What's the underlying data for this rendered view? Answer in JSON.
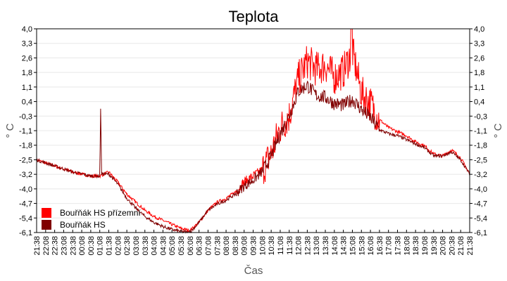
{
  "chart_data": {
    "type": "line",
    "title": "Teplota",
    "xlabel": "Čas",
    "ylabel": "° C",
    "ylabel_right": "° C",
    "ylim": [
      -6.1,
      4.0
    ],
    "yticks": [
      "4,0",
      "3,3",
      "2,6",
      "1,8",
      "1,1",
      "0,4",
      "-0,3",
      "-1,1",
      "-1,8",
      "-2,5",
      "-3,2",
      "-4,0",
      "-4,7",
      "-5,4",
      "-6,1"
    ],
    "xticks": [
      "21:38",
      "22:08",
      "22:38",
      "23:08",
      "23:38",
      "00:08",
      "00:38",
      "01:08",
      "01:38",
      "02:08",
      "02:38",
      "03:08",
      "03:38",
      "04:08",
      "04:38",
      "05:08",
      "05:38",
      "06:08",
      "06:38",
      "07:08",
      "07:38",
      "08:08",
      "08:38",
      "09:08",
      "09:38",
      "10:08",
      "10:38",
      "11:08",
      "11:38",
      "12:08",
      "12:38",
      "13:08",
      "13:38",
      "14:08",
      "14:38",
      "15:08",
      "15:38",
      "16:08",
      "16:38",
      "17:08",
      "17:38",
      "18:08",
      "18:38",
      "19:08",
      "19:38",
      "20:08",
      "20:38",
      "21:08",
      "21:38"
    ],
    "grid": true,
    "legend_position": "lower-left-inside",
    "series": [
      {
        "name": "Bouřňák HS přízemní",
        "color": "#ff0000",
        "keypoints_x_index_y": [
          [
            0,
            -2.5
          ],
          [
            2,
            -2.8
          ],
          [
            4,
            -3.1
          ],
          [
            6,
            -3.3
          ],
          [
            7,
            -3.3
          ],
          [
            8,
            -3.1
          ],
          [
            9,
            -3.6
          ],
          [
            10,
            -4.2
          ],
          [
            11,
            -4.6
          ],
          [
            12,
            -5.0
          ],
          [
            13,
            -5.3
          ],
          [
            14,
            -5.5
          ],
          [
            15,
            -5.7
          ],
          [
            16,
            -5.9
          ],
          [
            17,
            -6.0
          ],
          [
            18,
            -5.6
          ],
          [
            19,
            -5.0
          ],
          [
            20,
            -4.6
          ],
          [
            21,
            -4.4
          ],
          [
            22,
            -4.1
          ],
          [
            23,
            -3.6
          ],
          [
            24,
            -3.3
          ],
          [
            25,
            -3.0
          ],
          [
            26,
            -2.2
          ],
          [
            27,
            -0.9
          ],
          [
            28,
            -0.3
          ],
          [
            29,
            1.5
          ],
          [
            30,
            2.4
          ],
          [
            31,
            2.0
          ],
          [
            32,
            2.2
          ],
          [
            33,
            1.6
          ],
          [
            34,
            1.9
          ],
          [
            35,
            2.9
          ],
          [
            36,
            0.8
          ],
          [
            37,
            0.3
          ],
          [
            38,
            -0.5
          ],
          [
            39,
            -0.9
          ],
          [
            40,
            -1.1
          ],
          [
            41,
            -1.3
          ],
          [
            42,
            -1.6
          ],
          [
            43,
            -1.8
          ],
          [
            44,
            -2.2
          ],
          [
            45,
            -2.3
          ],
          [
            46,
            -2.0
          ],
          [
            47,
            -2.4
          ],
          [
            48,
            -3.2
          ]
        ],
        "peak_max": 4.0
      },
      {
        "name": "Bouřňák HS",
        "color": "#800000",
        "keypoints_x_index_y": [
          [
            0,
            -2.5
          ],
          [
            2,
            -2.8
          ],
          [
            4,
            -3.1
          ],
          [
            6,
            -3.3
          ],
          [
            7,
            -3.3
          ],
          [
            7.1,
            0.2
          ],
          [
            7.2,
            -3.2
          ],
          [
            8,
            -3.2
          ],
          [
            9,
            -3.7
          ],
          [
            10,
            -4.4
          ],
          [
            11,
            -4.9
          ],
          [
            12,
            -5.3
          ],
          [
            13,
            -5.6
          ],
          [
            14,
            -5.8
          ],
          [
            15,
            -5.95
          ],
          [
            16,
            -6.05
          ],
          [
            17,
            -6.1
          ],
          [
            18,
            -5.6
          ],
          [
            19,
            -5.0
          ],
          [
            20,
            -4.7
          ],
          [
            21,
            -4.5
          ],
          [
            22,
            -4.2
          ],
          [
            23,
            -3.8
          ],
          [
            24,
            -3.5
          ],
          [
            25,
            -3.1
          ],
          [
            26,
            -2.3
          ],
          [
            27,
            -1.2
          ],
          [
            28,
            -0.3
          ],
          [
            29,
            0.9
          ],
          [
            30,
            1.2
          ],
          [
            31,
            0.7
          ],
          [
            32,
            0.6
          ],
          [
            33,
            0.3
          ],
          [
            34,
            0.2
          ],
          [
            35,
            0.5
          ],
          [
            36,
            0.0
          ],
          [
            37,
            -0.4
          ],
          [
            38,
            -1.0
          ],
          [
            39,
            -1.2
          ],
          [
            40,
            -1.3
          ],
          [
            41,
            -1.5
          ],
          [
            42,
            -1.7
          ],
          [
            43,
            -1.9
          ],
          [
            44,
            -2.3
          ],
          [
            45,
            -2.3
          ],
          [
            46,
            -2.1
          ],
          [
            47,
            -2.5
          ],
          [
            48,
            -3.2
          ]
        ]
      }
    ]
  },
  "legend": {
    "items": [
      {
        "label": "Bouřňák HS přízemní",
        "color": "#ff0000"
      },
      {
        "label": "Bouřňák HS",
        "color": "#800000"
      }
    ]
  },
  "colors": {
    "grid": "#e8e8e8",
    "axis": "#000000",
    "background": "#ffffff"
  }
}
